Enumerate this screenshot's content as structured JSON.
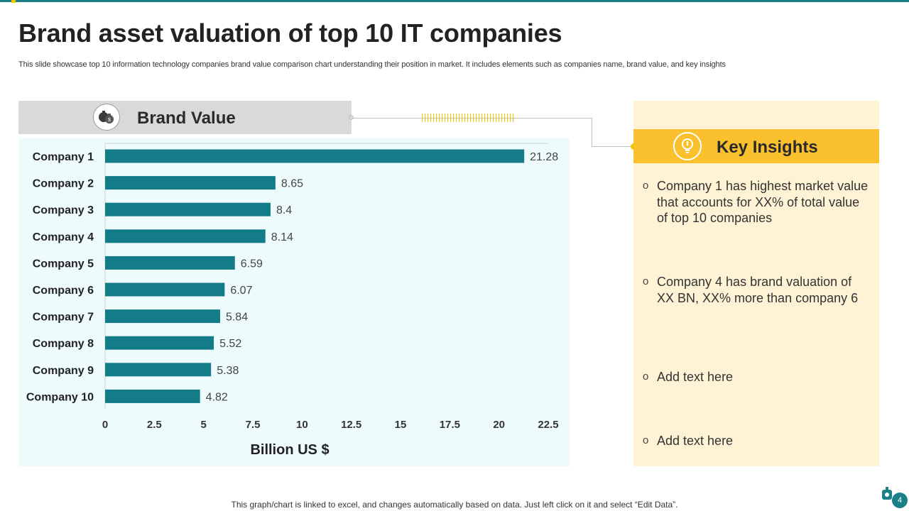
{
  "title": "Brand asset valuation of top 10 IT companies",
  "subtitle": "This slide showcase top 10 information technology companies brand value comparison chart understanding their position in market. It includes elements such as companies name, brand value, and key insights",
  "brand_header": {
    "label": "Brand Value",
    "icon": "money-bags-icon"
  },
  "key_insights": {
    "header": "Key Insights",
    "icon": "lightbulb-icon",
    "bullet": "o",
    "items": [
      "Company 1 has highest market value that accounts for XX% of total value of top 10 companies",
      "Company 4 has brand valuation of XX BN, XX% more than company 6",
      "Add text here",
      "Add text here"
    ]
  },
  "chart_data": {
    "type": "bar",
    "orientation": "horizontal",
    "categories": [
      "Company 1",
      "Company 2",
      "Company 3",
      "Company 4",
      "Company 5",
      "Company 6",
      "Company 7",
      "Company 8",
      "Company 9",
      "Company 10"
    ],
    "values": [
      21.28,
      8.65,
      8.4,
      8.14,
      6.59,
      6.07,
      5.84,
      5.52,
      5.38,
      4.82
    ],
    "value_labels": [
      "21.28",
      "8.65",
      "8.4",
      "8.14",
      "6.59",
      "6.07",
      "5.84",
      "5.52",
      "5.38",
      "4.82"
    ],
    "xlim": [
      0,
      22.5
    ],
    "xticks": [
      0,
      2.5,
      5,
      7.5,
      10,
      12.5,
      15,
      17.5,
      20,
      22.5
    ],
    "xtick_labels": [
      "0",
      "2.5",
      "5",
      "7.5",
      "10",
      "12.5",
      "15",
      "17.5",
      "20",
      "22.5"
    ],
    "xlabel": "Billion US $",
    "ylabel": "",
    "bar_color": "#137c88",
    "grid": false
  },
  "footer": "This graph/chart is linked to excel,  and changes automatically based on data. Just left click on it and select “Edit Data”.",
  "page_number": "4",
  "colors": {
    "accent": "#1a7f87",
    "highlight": "#f5c400",
    "panel": "#fff3d6",
    "chart_bg": "#eefbfd"
  }
}
